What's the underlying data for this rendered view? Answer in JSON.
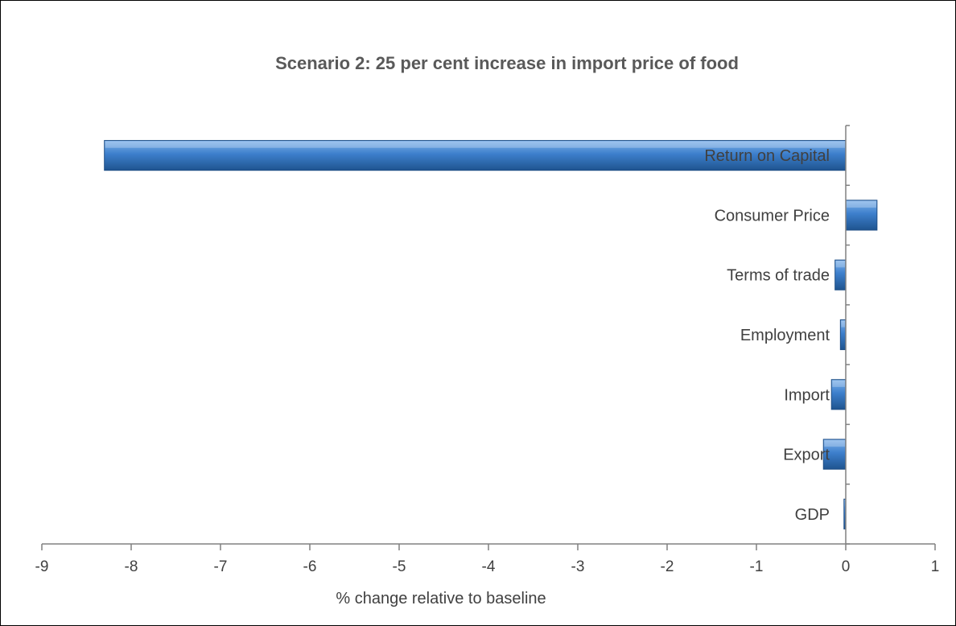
{
  "chart_data": {
    "type": "bar",
    "orientation": "horizontal",
    "title": "Scenario 2: 25 per cent increase in import price of food",
    "xlabel": "% change relative to baseline",
    "ylabel": "",
    "xlim": [
      -9,
      1
    ],
    "x_ticks": [
      "-9",
      "-8",
      "-7",
      "-6",
      "-5",
      "-4",
      "-3",
      "-2",
      "-1",
      "0",
      "1"
    ],
    "grid": false,
    "legend": "none",
    "bar_color": "#3a7cc4",
    "categories": [
      "Return on Capital",
      "Consumer Price",
      "Terms of trade",
      "Employment",
      "Import",
      "Export",
      "GDP"
    ],
    "values": [
      -8.3,
      0.35,
      -0.12,
      -0.06,
      -0.16,
      -0.25,
      -0.02
    ]
  }
}
